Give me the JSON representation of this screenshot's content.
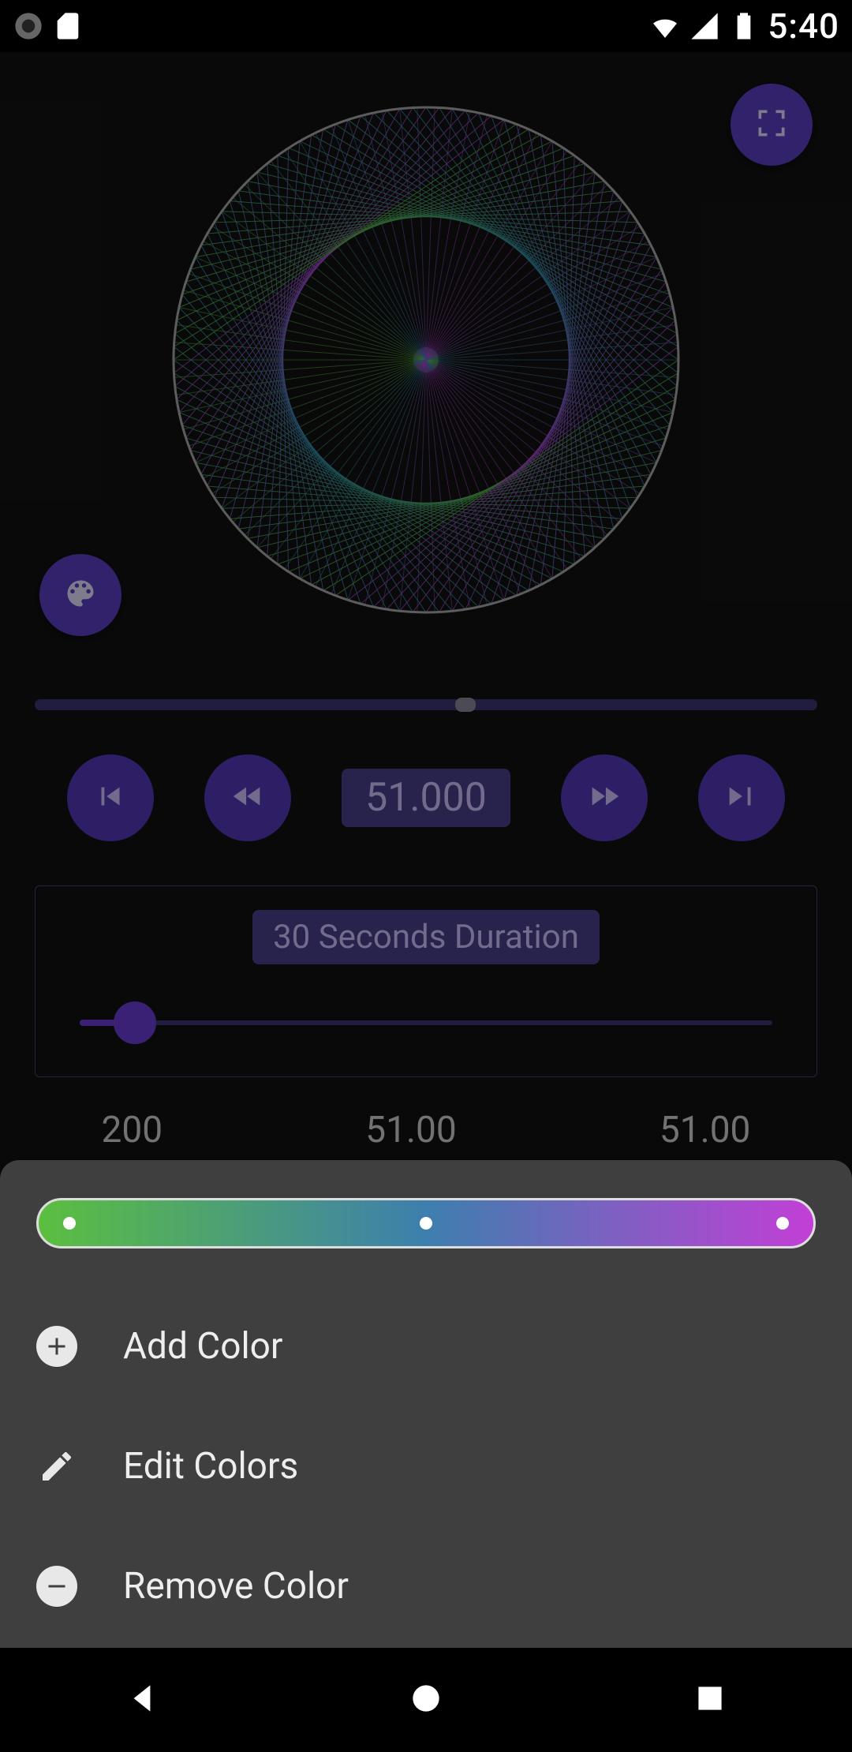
{
  "status_bar": {
    "time": "5:40"
  },
  "accent_color": "#5b3fc4",
  "playback": {
    "value": "51.000",
    "progress_pct": 55
  },
  "duration": {
    "chip_label": "30 Seconds Duration",
    "slider_pct": 8
  },
  "numbers": {
    "a": "200",
    "b": "51.00",
    "c": "51.00"
  },
  "spiro": {
    "outer_stroke": "#a8a8a8",
    "gradient_stops": [
      "#5bbf3f",
      "#2f8fb0",
      "#b53fd6"
    ]
  },
  "gradient_stops": [
    "#5bbf3f",
    "#3d7fae",
    "#c23fd6"
  ],
  "sheet": {
    "items": [
      {
        "label": "Add Color"
      },
      {
        "label": "Edit Colors"
      },
      {
        "label": "Remove Color"
      }
    ]
  }
}
